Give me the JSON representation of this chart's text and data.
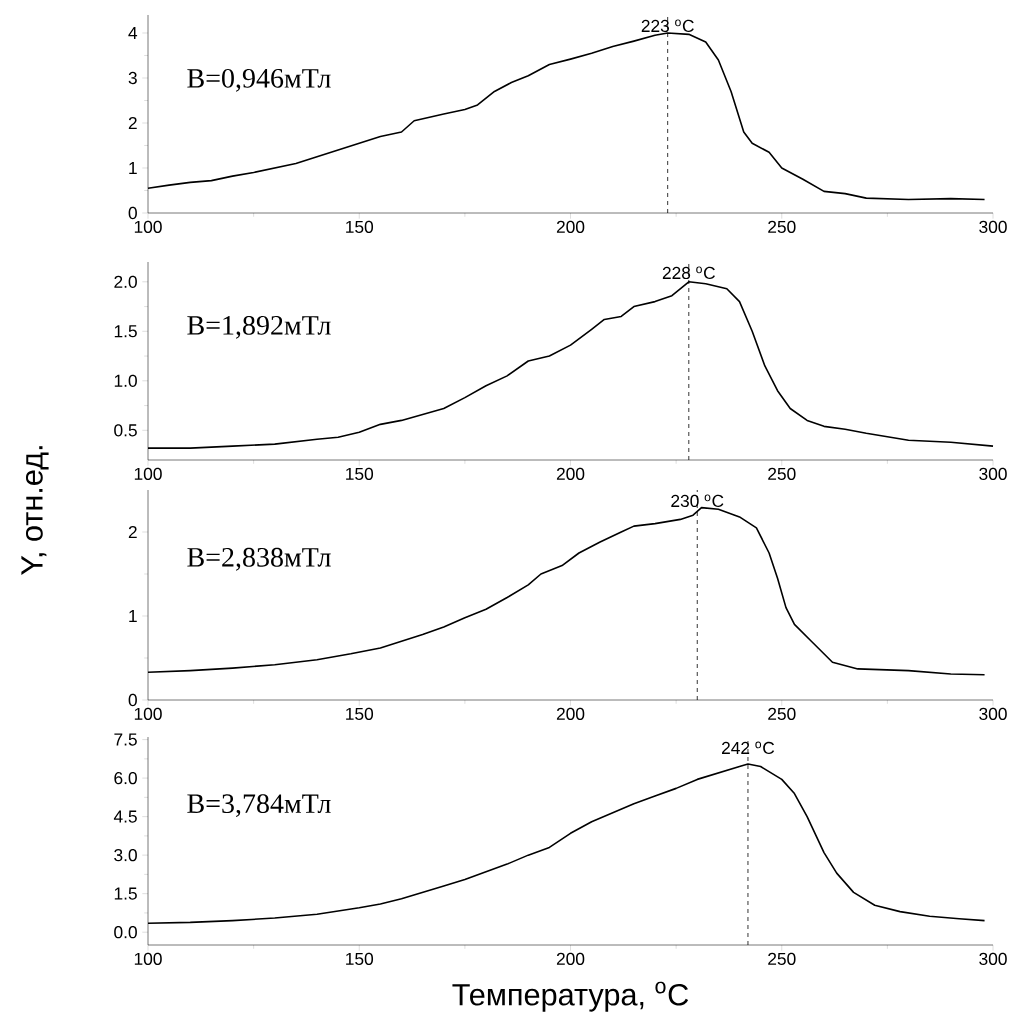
{
  "chart_data": [
    {
      "type": "line",
      "color": "#000000",
      "xlim": [
        100,
        300
      ],
      "xticks": [
        100,
        150,
        200,
        250,
        300
      ],
      "ylim": [
        0,
        4.4
      ],
      "yticks": [
        0,
        1,
        2,
        3,
        4
      ],
      "annotations": [
        "B=0,946мТл"
      ],
      "ref_lines": [
        {
          "axis": "x",
          "value": 223,
          "label": "223 $^{o}$C",
          "line_style": "dashed"
        }
      ],
      "x": [
        100,
        105,
        110,
        115,
        120,
        125,
        130,
        135,
        140,
        145,
        150,
        155,
        160,
        163,
        170,
        175,
        178,
        182,
        186,
        190,
        195,
        200,
        205,
        210,
        215,
        220,
        223,
        228,
        232,
        235,
        238,
        241,
        243,
        247,
        250,
        255,
        260,
        265,
        270,
        280,
        290,
        298
      ],
      "values": [
        0.55,
        0.62,
        0.68,
        0.72,
        0.82,
        0.9,
        1.0,
        1.1,
        1.25,
        1.4,
        1.55,
        1.7,
        1.8,
        2.05,
        2.2,
        2.3,
        2.4,
        2.7,
        2.9,
        3.05,
        3.3,
        3.42,
        3.55,
        3.7,
        3.82,
        3.95,
        4.0,
        3.97,
        3.8,
        3.4,
        2.7,
        1.8,
        1.55,
        1.35,
        1.0,
        0.75,
        0.48,
        0.43,
        0.33,
        0.3,
        0.32,
        0.3
      ]
    },
    {
      "type": "line",
      "color": "#000000",
      "ylabel": "Y, отн.ед.",
      "xlim": [
        100,
        300
      ],
      "xticks": [
        100,
        150,
        200,
        250,
        300
      ],
      "ylim": [
        0.2,
        2.2
      ],
      "yticks": [
        {
          "value": 0.5,
          "label": "0.5"
        },
        {
          "value": 1,
          "label": "1.0"
        },
        {
          "value": 1.5,
          "label": "1.5"
        },
        {
          "value": 2,
          "label": "2.0"
        }
      ],
      "annotations": [
        "B=1,892мТл"
      ],
      "ref_lines": [
        {
          "axis": "x",
          "value": 228,
          "label": "228 $^{o}$C",
          "line_style": "dashed"
        }
      ],
      "x": [
        100,
        110,
        120,
        130,
        140,
        145,
        150,
        155,
        160,
        165,
        170,
        175,
        180,
        185,
        190,
        195,
        200,
        205,
        208,
        212,
        215,
        220,
        224,
        228,
        232,
        237,
        240,
        243,
        246,
        249,
        252,
        256,
        260,
        265,
        270,
        280,
        290,
        300
      ],
      "values": [
        0.32,
        0.32,
        0.34,
        0.36,
        0.41,
        0.43,
        0.48,
        0.56,
        0.6,
        0.66,
        0.72,
        0.83,
        0.95,
        1.05,
        1.2,
        1.25,
        1.36,
        1.52,
        1.62,
        1.65,
        1.75,
        1.8,
        1.86,
        2.0,
        1.98,
        1.93,
        1.8,
        1.5,
        1.15,
        0.9,
        0.72,
        0.6,
        0.54,
        0.51,
        0.47,
        0.4,
        0.38,
        0.34
      ]
    },
    {
      "type": "line",
      "color": "#000000",
      "xlim": [
        100,
        300
      ],
      "xticks": [
        100,
        150,
        200,
        250,
        300
      ],
      "ylim": [
        0,
        2.5
      ],
      "yticks": [
        0,
        1,
        2
      ],
      "annotations": [
        "B=2,838мТл"
      ],
      "ref_lines": [
        {
          "axis": "x",
          "value": 230,
          "label": "230 $^{o}$C",
          "line_style": "dashed"
        }
      ],
      "x": [
        100,
        110,
        120,
        130,
        140,
        148,
        155,
        160,
        165,
        170,
        175,
        180,
        185,
        190,
        193,
        198,
        202,
        207,
        212,
        215,
        220,
        226,
        229,
        231,
        235,
        240,
        244,
        247,
        249,
        251,
        253,
        257,
        262,
        268,
        280,
        290,
        298
      ],
      "values": [
        0.33,
        0.35,
        0.38,
        0.42,
        0.48,
        0.55,
        0.62,
        0.7,
        0.78,
        0.87,
        0.98,
        1.08,
        1.22,
        1.37,
        1.5,
        1.6,
        1.75,
        1.88,
        2.0,
        2.07,
        2.1,
        2.15,
        2.2,
        2.29,
        2.27,
        2.18,
        2.05,
        1.75,
        1.45,
        1.1,
        0.9,
        0.7,
        0.45,
        0.37,
        0.35,
        0.31,
        0.3
      ]
    },
    {
      "type": "line",
      "color": "#000000",
      "xlabel": "Температура, $^{o}$C",
      "xlim": [
        100,
        300
      ],
      "xticks": [
        100,
        150,
        200,
        250,
        300
      ],
      "ylim": [
        -0.5,
        7.6
      ],
      "yticks": [
        {
          "value": 0,
          "label": "0.0"
        },
        {
          "value": 1.5,
          "label": "1.5"
        },
        {
          "value": 3,
          "label": "3.0"
        },
        {
          "value": 4.5,
          "label": "4.5"
        },
        {
          "value": 6,
          "label": "6.0"
        },
        {
          "value": 7.5,
          "label": "7.5"
        }
      ],
      "annotations": [
        "B=3,784мТл"
      ],
      "ref_lines": [
        {
          "axis": "x",
          "value": 242,
          "label": "242 $^{o}$C",
          "line_style": "dashed"
        }
      ],
      "x": [
        100,
        110,
        120,
        130,
        140,
        150,
        155,
        160,
        165,
        170,
        175,
        180,
        185,
        190,
        195,
        200,
        205,
        210,
        215,
        220,
        225,
        230,
        235,
        240,
        242,
        245,
        250,
        253,
        256,
        260,
        263,
        267,
        272,
        278,
        285,
        292,
        298
      ],
      "values": [
        0.35,
        0.38,
        0.45,
        0.55,
        0.7,
        0.95,
        1.1,
        1.3,
        1.55,
        1.8,
        2.05,
        2.35,
        2.65,
        3.0,
        3.3,
        3.85,
        4.3,
        4.65,
        5.0,
        5.3,
        5.6,
        5.95,
        6.2,
        6.45,
        6.55,
        6.45,
        5.95,
        5.4,
        4.5,
        3.1,
        2.3,
        1.55,
        1.05,
        0.8,
        0.62,
        0.52,
        0.45
      ]
    }
  ]
}
